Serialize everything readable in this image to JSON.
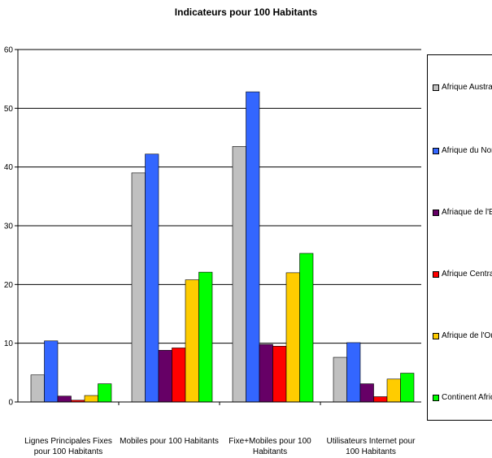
{
  "chart_data": {
    "type": "bar",
    "title": "Indicateurs pour 100 Habitants",
    "categories": [
      "Lignes Principales Fixes pour 100 Habitants",
      "Mobiles pour 100 Habitants",
      "Fixe+Mobiles pour 100 Habitants",
      "Utilisateurs Internet pour 100 Habitants"
    ],
    "series": [
      {
        "name": "Afrique Australe",
        "color": "#c0c0c0",
        "values": [
          4.6,
          39.0,
          43.5,
          7.6
        ]
      },
      {
        "name": "Afrique du Nord",
        "color": "#3366ff",
        "values": [
          10.4,
          42.2,
          52.8,
          10.1
        ]
      },
      {
        "name": "Afriaque de l'Est",
        "color": "#660066",
        "values": [
          1.0,
          8.8,
          9.8,
          3.1
        ]
      },
      {
        "name": "Afrique Centrale",
        "color": "#ff0000",
        "values": [
          0.3,
          9.2,
          9.5,
          0.9
        ]
      },
      {
        "name": "Afrique de l'Ouest",
        "color": "#ffcc00",
        "values": [
          1.1,
          20.8,
          22.0,
          3.9
        ]
      },
      {
        "name": "Continent Africain",
        "color": "#00ff00",
        "values": [
          3.1,
          22.1,
          25.3,
          4.9
        ]
      }
    ],
    "ylim": [
      0,
      60
    ],
    "yticks": [
      0,
      10,
      20,
      30,
      40,
      50,
      60
    ],
    "grid": true,
    "legend_position": "right"
  }
}
